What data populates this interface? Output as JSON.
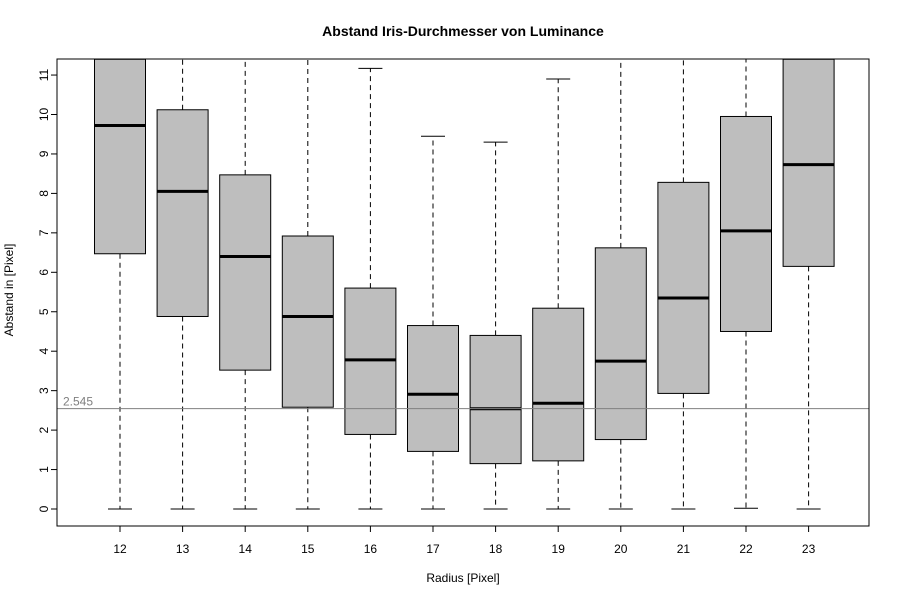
{
  "chart_data": {
    "type": "boxplot",
    "title": "Abstand Iris-Durchmesser von Luminance",
    "xlabel": "Radius [Pixel]",
    "ylabel": "Abstand in [Pixel]",
    "ylim": [
      -0.45,
      11.4
    ],
    "yticks": [
      "0",
      "1",
      "2",
      "3",
      "4",
      "5",
      "6",
      "7",
      "8",
      "9",
      "10",
      "11"
    ],
    "categories": [
      "12",
      "13",
      "14",
      "15",
      "16",
      "17",
      "18",
      "19",
      "20",
      "21",
      "22",
      "23"
    ],
    "box_color": "#bebebe",
    "reference_line": {
      "value": 2.545,
      "label": "2.545",
      "color": "#808080"
    },
    "boxes": [
      {
        "label": "12",
        "whisker_low": 0,
        "q1": 6.47,
        "median": 9.72,
        "q3": 11.4,
        "whisker_high": 11.4
      },
      {
        "label": "13",
        "whisker_low": 0,
        "q1": 4.88,
        "median": 8.05,
        "q3": 10.12,
        "whisker_high": 11.4
      },
      {
        "label": "14",
        "whisker_low": 0,
        "q1": 3.52,
        "median": 6.4,
        "q3": 8.47,
        "whisker_high": 11.4
      },
      {
        "label": "15",
        "whisker_low": 0,
        "q1": 2.58,
        "median": 4.88,
        "q3": 6.92,
        "whisker_high": 11.4
      },
      {
        "label": "16",
        "whisker_low": 0,
        "q1": 1.89,
        "median": 3.78,
        "q3": 5.6,
        "whisker_high": 11.17
      },
      {
        "label": "17",
        "whisker_low": 0,
        "q1": 1.46,
        "median": 2.91,
        "q3": 4.65,
        "whisker_high": 9.45
      },
      {
        "label": "18",
        "whisker_low": 0,
        "q1": 1.15,
        "median": 2.54,
        "q3": 4.4,
        "whisker_high": 9.3
      },
      {
        "label": "19",
        "whisker_low": 0,
        "q1": 1.22,
        "median": 2.68,
        "q3": 5.09,
        "whisker_high": 10.9
      },
      {
        "label": "20",
        "whisker_low": 0,
        "q1": 1.76,
        "median": 3.75,
        "q3": 6.62,
        "whisker_high": 11.4
      },
      {
        "label": "21",
        "whisker_low": 0,
        "q1": 2.93,
        "median": 5.35,
        "q3": 8.28,
        "whisker_high": 11.4
      },
      {
        "label": "22",
        "whisker_low": 0.02,
        "q1": 4.5,
        "median": 7.05,
        "q3": 9.95,
        "whisker_high": 11.4
      },
      {
        "label": "23",
        "whisker_low": 0,
        "q1": 6.15,
        "median": 8.73,
        "q3": 11.4,
        "whisker_high": 11.4
      }
    ]
  }
}
